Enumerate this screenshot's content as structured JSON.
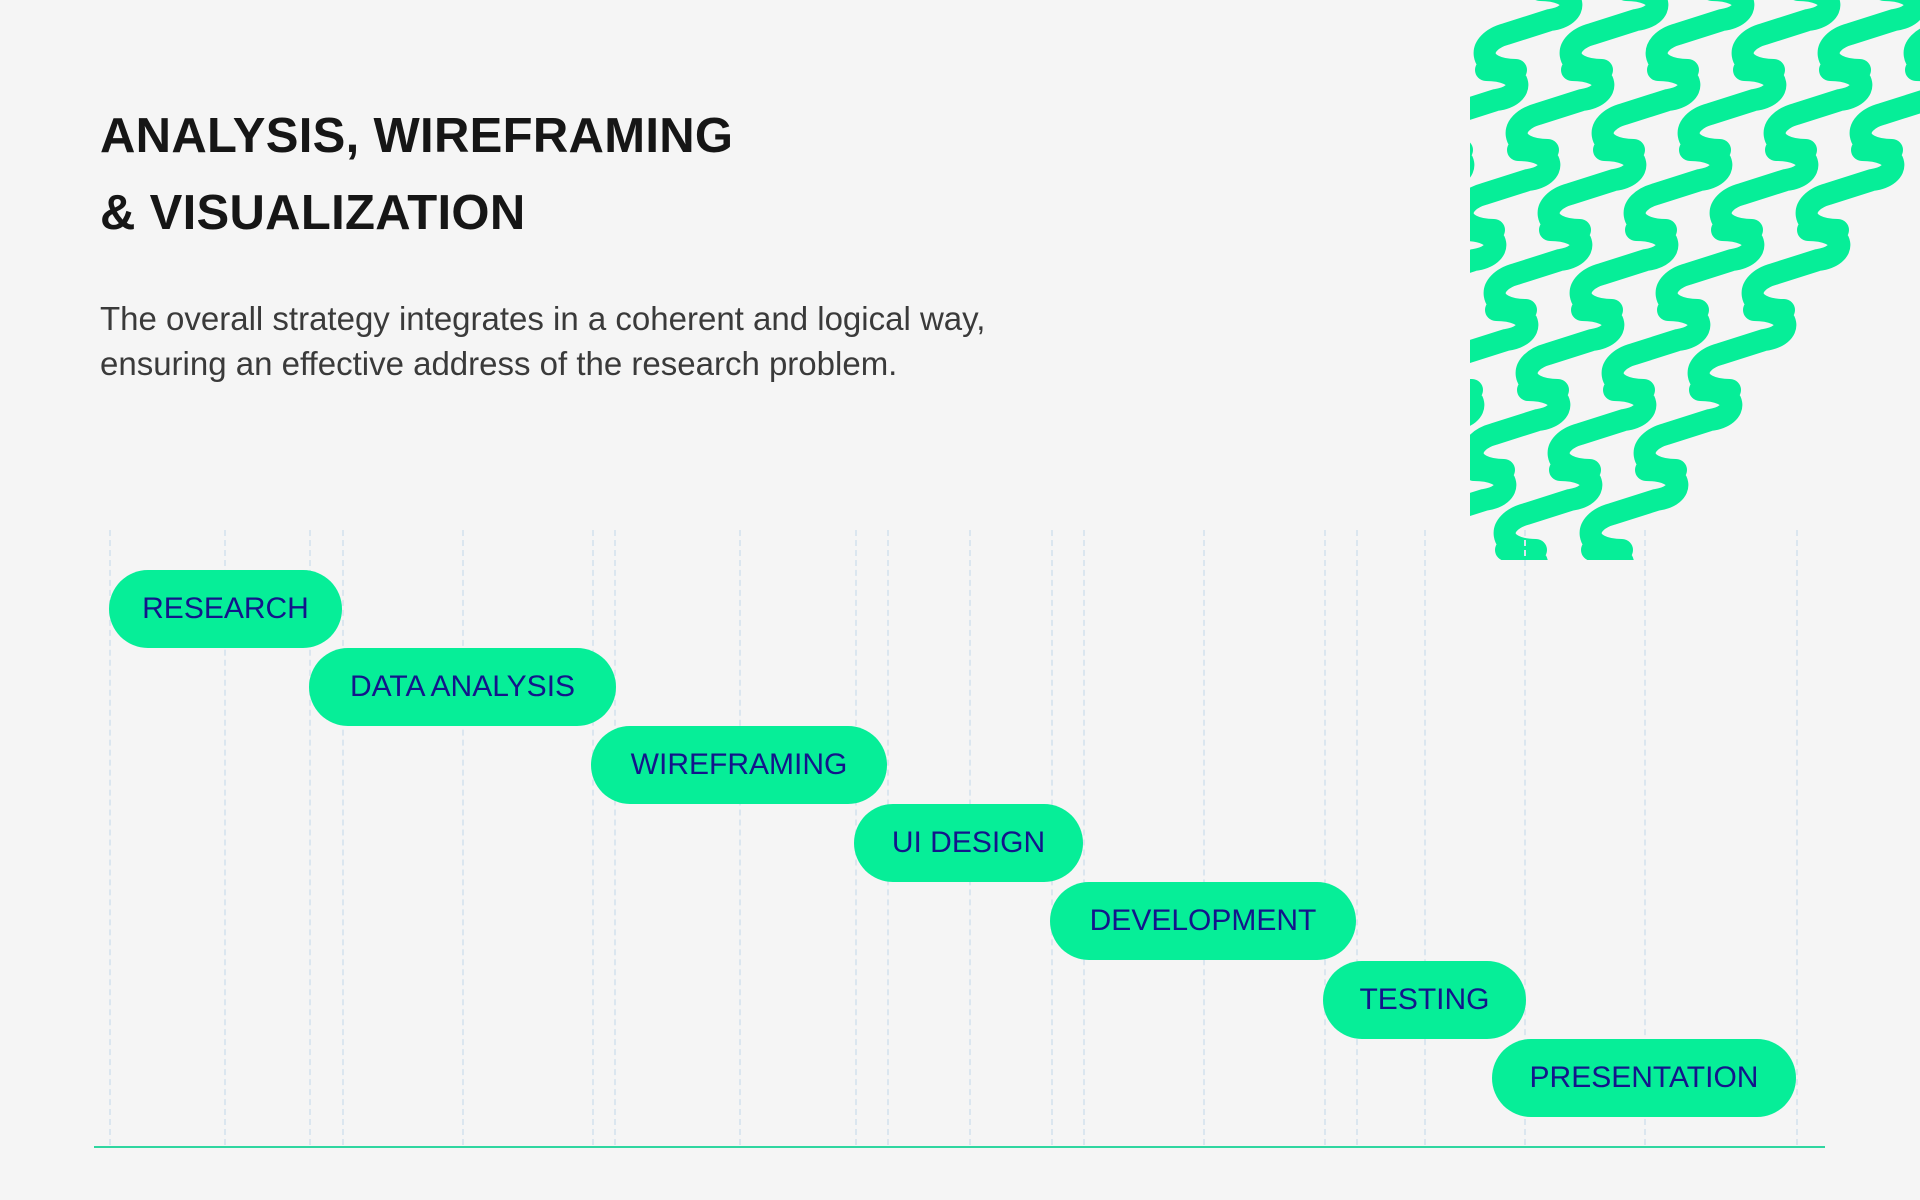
{
  "header": {
    "title_line1": "ANALYSIS, WIREFRAMING",
    "title_line2": "& VISUALIZATION",
    "description": "The overall strategy integrates in a coherent and logical way, ensuring an effective address of the research problem."
  },
  "colors": {
    "background": "#f5f5f5",
    "accent": "#06ee98",
    "stage_text": "#13158a",
    "heading": "#161616",
    "body_text": "#3a3a3a"
  },
  "decoration": {
    "pattern_icon": "green-wave-pattern"
  },
  "stages": [
    {
      "label": "RESEARCH"
    },
    {
      "label": "DATA ANALYSIS"
    },
    {
      "label": "WIREFRAMING"
    },
    {
      "label": "UI DESIGN"
    },
    {
      "label": "DEVELOPMENT"
    },
    {
      "label": "TESTING"
    },
    {
      "label": "PRESENTATION"
    }
  ]
}
